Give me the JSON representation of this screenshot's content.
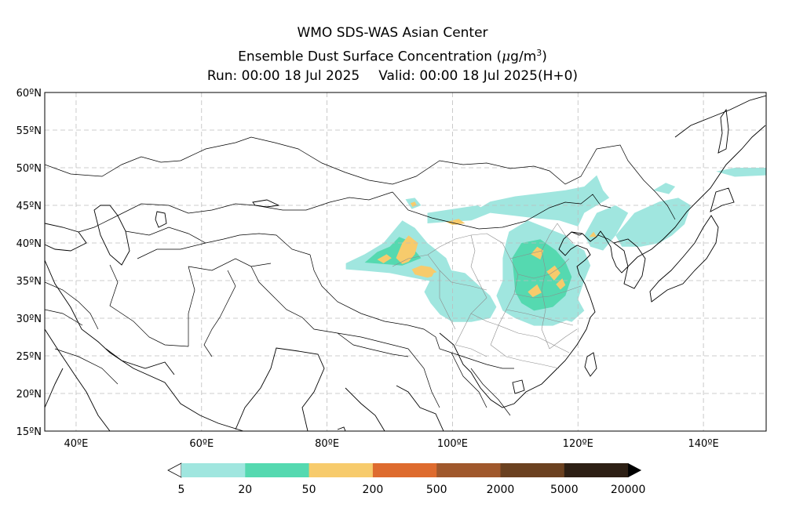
{
  "title": {
    "line1": "WMO SDS-WAS Asian Center",
    "line2_prefix": "Ensemble Dust Surface Concentration (",
    "line2_mu": "μ",
    "line2_unit": "g/m",
    "line2_sup": "3",
    "line2_suffix": ")",
    "run": "Run: 00:00 18 Jul 2025",
    "valid": "Valid: 00:00 18 Jul 2025(H+0)"
  },
  "map": {
    "lon_range": [
      35,
      150
    ],
    "lat_range": [
      15,
      60
    ],
    "lat_ticks": [
      {
        "value": 60,
        "label": "60ºN"
      },
      {
        "value": 55,
        "label": "55ºN"
      },
      {
        "value": 50,
        "label": "50ºN"
      },
      {
        "value": 45,
        "label": "45ºN"
      },
      {
        "value": 40,
        "label": "40ºN"
      },
      {
        "value": 35,
        "label": "35ºN"
      },
      {
        "value": 30,
        "label": "30ºN"
      },
      {
        "value": 25,
        "label": "25ºN"
      },
      {
        "value": 20,
        "label": "20ºN"
      },
      {
        "value": 15,
        "label": "15ºN"
      }
    ],
    "lon_ticks": [
      {
        "value": 40,
        "label": "40ºE"
      },
      {
        "value": 60,
        "label": "60ºE"
      },
      {
        "value": 80,
        "label": "80ºE"
      },
      {
        "value": 100,
        "label": "100ºE"
      },
      {
        "value": 120,
        "label": "120ºE"
      },
      {
        "value": 140,
        "label": "140ºE"
      }
    ],
    "grid_lons": [
      40,
      60,
      80,
      100,
      120,
      140
    ],
    "grid_lats": [
      20,
      25,
      30,
      35,
      40,
      45,
      50,
      55
    ],
    "dust_regions": [
      {
        "level": 1,
        "pts": [
          [
            83,
            37.3
          ],
          [
            86,
            38.5
          ],
          [
            89,
            40
          ],
          [
            91,
            42
          ],
          [
            92,
            43
          ],
          [
            94,
            42
          ],
          [
            96,
            40
          ],
          [
            99,
            38
          ],
          [
            100,
            36
          ],
          [
            99,
            34.5
          ],
          [
            96,
            35
          ],
          [
            93,
            35.5
          ],
          [
            90,
            36
          ],
          [
            86,
            36.3
          ],
          [
            83,
            36.5
          ]
        ]
      },
      {
        "level": 2,
        "pts": [
          [
            86,
            37.4
          ],
          [
            88,
            38.8
          ],
          [
            90,
            39.5
          ],
          [
            91.5,
            40.8
          ],
          [
            93,
            40.3
          ],
          [
            94,
            39
          ],
          [
            95,
            38
          ],
          [
            92,
            37
          ],
          [
            89,
            37.2
          ]
        ]
      },
      {
        "level": 3,
        "pts": [
          [
            91,
            38
          ],
          [
            92,
            40
          ],
          [
            93,
            41
          ],
          [
            94.5,
            40
          ],
          [
            94,
            38.5
          ],
          [
            93,
            37.5
          ],
          [
            92,
            37.2
          ]
        ]
      },
      {
        "level": 3,
        "pts": [
          [
            93.5,
            36.5
          ],
          [
            95,
            37
          ],
          [
            96.5,
            36.8
          ],
          [
            98,
            35.8
          ],
          [
            96,
            35.4
          ],
          [
            94,
            35.8
          ]
        ]
      },
      {
        "level": 3,
        "pts": [
          [
            88,
            37.8
          ],
          [
            89.5,
            38.5
          ],
          [
            90.3,
            38
          ],
          [
            89,
            37.3
          ]
        ]
      },
      {
        "level": 1,
        "pts": [
          [
            92.5,
            45.8
          ],
          [
            94,
            46
          ],
          [
            95,
            45
          ],
          [
            93.5,
            44.5
          ]
        ]
      },
      {
        "level": 3,
        "pts": [
          [
            93.3,
            45.3
          ],
          [
            94,
            45.5
          ],
          [
            94.3,
            45
          ],
          [
            93.6,
            44.8
          ]
        ]
      },
      {
        "level": 1,
        "pts": [
          [
            96,
            44
          ],
          [
            100,
            44.5
          ],
          [
            104,
            45
          ],
          [
            106,
            44
          ],
          [
            103,
            43
          ],
          [
            99,
            42.8
          ],
          [
            96,
            42.6
          ]
        ]
      },
      {
        "level": 3,
        "pts": [
          [
            99,
            42.8
          ],
          [
            101,
            43.2
          ],
          [
            102,
            42.6
          ],
          [
            100,
            42.4
          ]
        ]
      },
      {
        "level": 1,
        "pts": [
          [
            103,
            44
          ],
          [
            106,
            45.5
          ],
          [
            110,
            46.2
          ],
          [
            114,
            46.6
          ],
          [
            118,
            47
          ],
          [
            121,
            47.5
          ],
          [
            123,
            49
          ],
          [
            124,
            47
          ],
          [
            125,
            46
          ],
          [
            121,
            44
          ],
          [
            120,
            42.2
          ],
          [
            117,
            43
          ],
          [
            113,
            43.3
          ],
          [
            110,
            43.6
          ],
          [
            106,
            44
          ]
        ]
      },
      {
        "level": 1,
        "pts": [
          [
            109,
            41.5
          ],
          [
            112,
            43
          ],
          [
            115,
            42
          ],
          [
            118,
            41
          ],
          [
            119,
            40
          ],
          [
            121,
            39
          ],
          [
            122,
            37
          ],
          [
            121,
            35
          ],
          [
            120,
            32.5
          ],
          [
            119,
            30
          ],
          [
            116,
            29
          ],
          [
            113,
            29
          ],
          [
            110,
            30
          ],
          [
            108,
            31
          ],
          [
            107,
            33
          ],
          [
            108,
            35
          ],
          [
            108,
            38
          ],
          [
            108.5,
            40
          ]
        ]
      },
      {
        "level": 2,
        "pts": [
          [
            109.5,
            38
          ],
          [
            111,
            40
          ],
          [
            114,
            40.5
          ],
          [
            116.5,
            39
          ],
          [
            118,
            37.5
          ],
          [
            119,
            35.5
          ],
          [
            118,
            33
          ],
          [
            116,
            31.5
          ],
          [
            113,
            31
          ],
          [
            111,
            32
          ],
          [
            110,
            33.5
          ],
          [
            109.8,
            35.5
          ]
        ]
      },
      {
        "level": 3,
        "pts": [
          [
            112.5,
            38.5
          ],
          [
            113.5,
            39.5
          ],
          [
            114.5,
            39
          ],
          [
            114,
            37.8
          ]
        ]
      },
      {
        "level": 3,
        "pts": [
          [
            115,
            36.2
          ],
          [
            116.3,
            37
          ],
          [
            117.2,
            36
          ],
          [
            116.2,
            35
          ]
        ]
      },
      {
        "level": 3,
        "pts": [
          [
            112,
            33.5
          ],
          [
            113.5,
            34.5
          ],
          [
            114.2,
            33.4
          ],
          [
            112.8,
            32.8
          ]
        ]
      },
      {
        "level": 3,
        "pts": [
          [
            116.5,
            34.5
          ],
          [
            117.5,
            35.3
          ],
          [
            118,
            34.4
          ],
          [
            117.2,
            33.8
          ]
        ]
      },
      {
        "level": 1,
        "pts": [
          [
            97,
            36
          ],
          [
            99,
            36.5
          ],
          [
            102,
            36
          ],
          [
            104,
            34.5
          ],
          [
            106,
            33
          ],
          [
            107,
            31.5
          ],
          [
            106,
            30
          ],
          [
            103,
            29.5
          ],
          [
            100,
            29.5
          ],
          [
            98,
            30.5
          ],
          [
            96.5,
            32
          ],
          [
            95.5,
            33.5
          ]
        ]
      },
      {
        "level": 1,
        "pts": [
          [
            121,
            41
          ],
          [
            123,
            44
          ],
          [
            126,
            45
          ],
          [
            128,
            44
          ],
          [
            126,
            41
          ],
          [
            124,
            39
          ],
          [
            122,
            39.5
          ]
        ]
      },
      {
        "level": 3,
        "pts": [
          [
            121.8,
            40.8
          ],
          [
            122.5,
            41.5
          ],
          [
            123,
            40.8
          ]
        ]
      },
      {
        "level": 1,
        "pts": [
          [
            126,
            41
          ],
          [
            129,
            44
          ],
          [
            133,
            45.5
          ],
          [
            136,
            46
          ],
          [
            138,
            45
          ],
          [
            137,
            42.5
          ],
          [
            135,
            41
          ],
          [
            133,
            40
          ],
          [
            130,
            39.5
          ],
          [
            127,
            39.5
          ]
        ]
      },
      {
        "level": 1,
        "pts": [
          [
            132,
            47
          ],
          [
            134,
            48
          ],
          [
            135.5,
            47.5
          ],
          [
            134.5,
            46.5
          ]
        ]
      },
      {
        "level": 1,
        "pts": [
          [
            142,
            49.5
          ],
          [
            145,
            50
          ],
          [
            150,
            50
          ],
          [
            150,
            49
          ],
          [
            145,
            48.8
          ]
        ]
      },
      {
        "level": 1,
        "pts": [
          [
            117,
            30
          ],
          [
            120,
            32.5
          ],
          [
            121,
            31
          ],
          [
            119,
            29.5
          ]
        ]
      }
    ],
    "colorbar": {
      "colors": [
        "#a0e6df",
        "#55d9b0",
        "#f7cb6c",
        "#de6b2e",
        "#a0582c",
        "#6b4120",
        "#2d1f14"
      ],
      "under_color": "#ffffff",
      "over_color": "#000000",
      "labels": [
        "5",
        "20",
        "50",
        "200",
        "500",
        "2000",
        "5000",
        "20000"
      ]
    }
  }
}
